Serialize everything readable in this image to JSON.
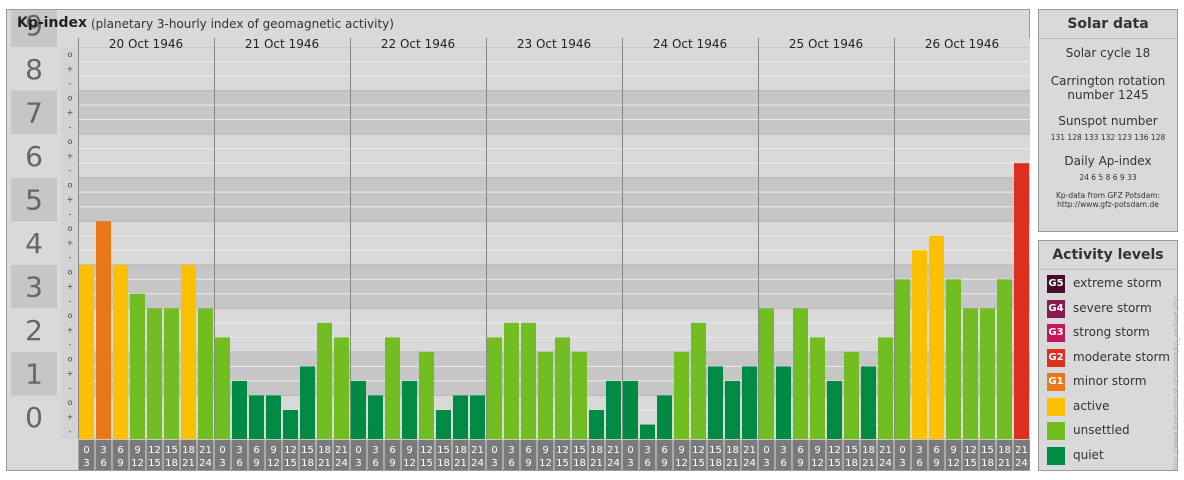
{
  "title": "Kp-index",
  "subtitle": "(planetary 3-hourly index of geomagnetic activity)",
  "chart_data": {
    "type": "bar",
    "ylim": [
      0,
      9
    ],
    "y_ticks": [
      "0",
      "1",
      "2",
      "3",
      "4",
      "5",
      "6",
      "7",
      "8",
      "9"
    ],
    "minor_ticks": [
      "-",
      "+",
      "o",
      "-",
      "+",
      "o",
      "-",
      "+",
      "o",
      "-",
      "+",
      "o",
      "-",
      "+",
      "o",
      "-",
      "+",
      "o",
      "-",
      "+",
      "o",
      "-",
      "+",
      "o",
      "-",
      "+",
      "o"
    ],
    "days": [
      "20 Oct 1946",
      "21 Oct 1946",
      "22 Oct 1946",
      "23 Oct 1946",
      "24 Oct 1946",
      "25 Oct 1946",
      "26 Oct 1946"
    ],
    "interval_start": [
      "0",
      "3",
      "6",
      "9",
      "12",
      "15",
      "18",
      "21"
    ],
    "interval_end": [
      "3",
      "6",
      "9",
      "12",
      "15",
      "18",
      "21",
      "24"
    ],
    "values": [
      [
        4.0,
        5.0,
        4.0,
        3.333,
        3.0,
        3.0,
        4.0,
        3.0
      ],
      [
        2.333,
        1.333,
        1.0,
        1.0,
        0.667,
        1.667,
        2.667,
        2.333
      ],
      [
        1.333,
        1.0,
        2.333,
        1.333,
        2.0,
        0.667,
        1.0,
        1.0
      ],
      [
        2.333,
        2.667,
        2.667,
        2.0,
        2.333,
        2.0,
        0.667,
        1.333
      ],
      [
        1.333,
        0.333,
        1.0,
        2.0,
        2.667,
        1.667,
        1.333,
        1.667
      ],
      [
        3.0,
        1.667,
        3.0,
        2.333,
        1.333,
        2.0,
        1.667,
        2.333
      ],
      [
        3.667,
        4.333,
        4.667,
        3.667,
        3.0,
        3.0,
        3.667,
        6.333
      ]
    ],
    "colors": {
      "quiet": "#008b45",
      "unsettled": "#72bd22",
      "active": "#fbc000",
      "G1": "#e87719",
      "G2": "#dc2f20",
      "G3": "#c2185b",
      "G4": "#8b1a4f",
      "G5": "#4a0a2a"
    }
  },
  "solar_data": {
    "title": "Solar data",
    "solar_cycle": "Solar cycle 18",
    "carrington_1": "Carrington rotation",
    "carrington_2": "number 1245",
    "sunspot_title": "Sunspot number",
    "sunspot_values": "131  128  133  132  123  136  128",
    "ap_title": "Daily Ap-index",
    "ap_values": "24  6  5  8  6  9  33",
    "credit_1": "Kp-data from GFZ Potsdam:",
    "credit_2": "http://www.gfz-potsdam.de"
  },
  "activity_levels": {
    "title": "Activity levels",
    "items": [
      {
        "code": "G5",
        "label": "extreme storm",
        "color": "#4a0a2a"
      },
      {
        "code": "G4",
        "label": "severe storm",
        "color": "#8b1a4f"
      },
      {
        "code": "G3",
        "label": "strong storm",
        "color": "#c2185b"
      },
      {
        "code": "G2",
        "label": "moderate storm",
        "color": "#dc2f20"
      },
      {
        "code": "G1",
        "label": "minor storm",
        "color": "#e87719"
      },
      {
        "code": "",
        "label": "active",
        "color": "#fbc000"
      },
      {
        "code": "",
        "label": "unsettled",
        "color": "#72bd22"
      },
      {
        "code": "",
        "label": "quiet",
        "color": "#008b45"
      }
    ]
  },
  "watermark": "http://www.freie-referat.de/aurora/kp_archive.php"
}
